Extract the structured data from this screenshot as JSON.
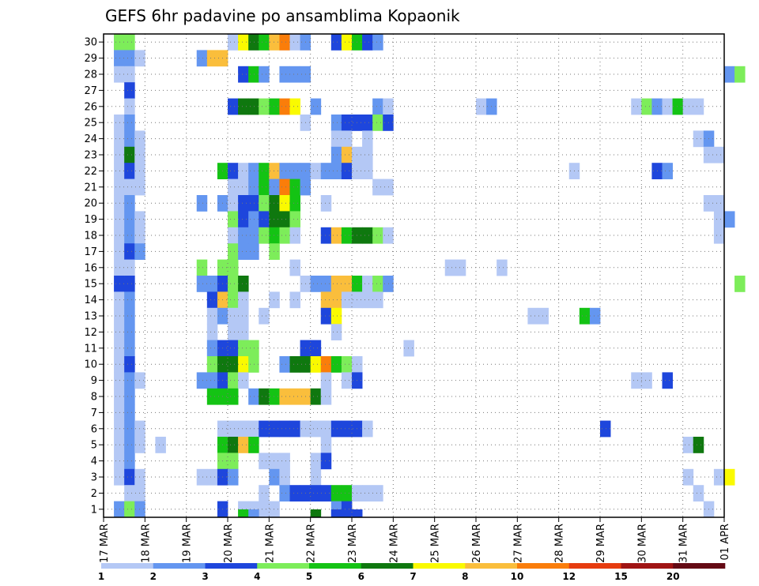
{
  "chart_data": {
    "type": "heatmap",
    "title": "GEFS 6hr padavine po ansamblima Kopaonik",
    "x_axis": {
      "tick_labels": [
        "17 MAR",
        "18 MAR",
        "19 MAR",
        "20 MAR",
        "21 MAR",
        "22 MAR",
        "23 MAR",
        "24 MAR",
        "25 MAR",
        "26 MAR",
        "27 MAR",
        "28 MAR",
        "29 MAR",
        "30 MAR",
        "31 MAR",
        "01 APR"
      ],
      "range_days": [
        0,
        15
      ],
      "step_hours": 6
    },
    "y_axis": {
      "tick_labels": [
        "1",
        "2",
        "3",
        "4",
        "5",
        "6",
        "7",
        "8",
        "9",
        "10",
        "11",
        "12",
        "13",
        "14",
        "15",
        "16",
        "17",
        "18",
        "19",
        "20",
        "21",
        "22",
        "23",
        "24",
        "25",
        "26",
        "27",
        "28",
        "29",
        "30"
      ],
      "range": [
        0.5,
        30.5
      ]
    },
    "grid": "dotted",
    "legend": {
      "placement": "bottom",
      "colors": [
        "#b4c8f5",
        "#6496f0",
        "#1e46dc",
        "#7ded5a",
        "#14c314",
        "#0f780f",
        "#fafa00",
        "#fabe3c",
        "#fa7d0a",
        "#e63c0f",
        "#a01414",
        "#640a14"
      ],
      "labels": [
        "1",
        "2",
        "3",
        "4",
        "5",
        "6",
        "7",
        "8",
        "10",
        "12",
        "15",
        "20"
      ]
    },
    "cells": [
      [
        1,
        30,
        1
      ],
      [
        1,
        30,
        2
      ],
      [
        1,
        30,
        4
      ],
      [
        1,
        29,
        1
      ],
      [
        1,
        29,
        2
      ],
      [
        1,
        28,
        1
      ],
      [
        1,
        25,
        1
      ],
      [
        1,
        24,
        1
      ],
      [
        1,
        23,
        1
      ],
      [
        1,
        22,
        1
      ],
      [
        1,
        21,
        1
      ],
      [
        1,
        20,
        1
      ],
      [
        1,
        19,
        1
      ],
      [
        1,
        18,
        1
      ],
      [
        1,
        17,
        1
      ],
      [
        1,
        16,
        1
      ],
      [
        1,
        15,
        3
      ],
      [
        1,
        14,
        1
      ],
      [
        1,
        13,
        1
      ],
      [
        1,
        12,
        1
      ],
      [
        1,
        11,
        1
      ],
      [
        1,
        10,
        1
      ],
      [
        1,
        9,
        1
      ],
      [
        1,
        8,
        1
      ],
      [
        1,
        7,
        1
      ],
      [
        1,
        6,
        1
      ],
      [
        1,
        5,
        1
      ],
      [
        1,
        4,
        1
      ],
      [
        1,
        3,
        1
      ],
      [
        1,
        1,
        2
      ],
      [
        2,
        30,
        4
      ],
      [
        2,
        29,
        2
      ],
      [
        2,
        28,
        1
      ],
      [
        2,
        27,
        3
      ],
      [
        2,
        26,
        1
      ],
      [
        2,
        25,
        2
      ],
      [
        2,
        24,
        2
      ],
      [
        2,
        23,
        6
      ],
      [
        2,
        22,
        3
      ],
      [
        2,
        21,
        1
      ],
      [
        2,
        20,
        2
      ],
      [
        2,
        19,
        2
      ],
      [
        2,
        18,
        2
      ],
      [
        2,
        17,
        3
      ],
      [
        2,
        16,
        1
      ],
      [
        2,
        15,
        3
      ],
      [
        2,
        14,
        2
      ],
      [
        2,
        13,
        2
      ],
      [
        2,
        12,
        2
      ],
      [
        2,
        11,
        2
      ],
      [
        2,
        10,
        3
      ],
      [
        2,
        9,
        2
      ],
      [
        2,
        8,
        2
      ],
      [
        2,
        7,
        2
      ],
      [
        2,
        6,
        2
      ],
      [
        2,
        5,
        2
      ],
      [
        2,
        4,
        2
      ],
      [
        2,
        3,
        3
      ],
      [
        2,
        2,
        1
      ],
      [
        2,
        1,
        4
      ],
      [
        3,
        29,
        1
      ],
      [
        3,
        24,
        1
      ],
      [
        3,
        23,
        1
      ],
      [
        3,
        22,
        1
      ],
      [
        3,
        21,
        1
      ],
      [
        3,
        19,
        1
      ],
      [
        3,
        18,
        1
      ],
      [
        3,
        17,
        2
      ],
      [
        3,
        9,
        1
      ],
      [
        3,
        6,
        1
      ],
      [
        3,
        5,
        1
      ],
      [
        3,
        3,
        1
      ],
      [
        3,
        2,
        1
      ],
      [
        3,
        1,
        2
      ],
      [
        5,
        5,
        1
      ],
      [
        9,
        29,
        2
      ],
      [
        9,
        20,
        2
      ],
      [
        9,
        16,
        4
      ],
      [
        9,
        15,
        2
      ],
      [
        9,
        9,
        2
      ],
      [
        9,
        3,
        1
      ],
      [
        10,
        29,
        8
      ],
      [
        10,
        15,
        2
      ],
      [
        10,
        14,
        3
      ],
      [
        10,
        13,
        1
      ],
      [
        10,
        12,
        1
      ],
      [
        10,
        11,
        2
      ],
      [
        10,
        10,
        4
      ],
      [
        10,
        9,
        2
      ],
      [
        10,
        8,
        5
      ],
      [
        10,
        3,
        1
      ],
      [
        11,
        29,
        8
      ],
      [
        11,
        22,
        5
      ],
      [
        11,
        20,
        2
      ],
      [
        11,
        16,
        4
      ],
      [
        11,
        15,
        3
      ],
      [
        11,
        14,
        8
      ],
      [
        11,
        13,
        2
      ],
      [
        11,
        11,
        3
      ],
      [
        11,
        10,
        6
      ],
      [
        11,
        9,
        3
      ],
      [
        11,
        8,
        5
      ],
      [
        11,
        6,
        1
      ],
      [
        11,
        5,
        5
      ],
      [
        11,
        4,
        4
      ],
      [
        11,
        3,
        3
      ],
      [
        11,
        1,
        3
      ],
      [
        12,
        30,
        1
      ],
      [
        12,
        26,
        3
      ],
      [
        12,
        22,
        3
      ],
      [
        12,
        21,
        1
      ],
      [
        12,
        20,
        1
      ],
      [
        12,
        19,
        4
      ],
      [
        12,
        18,
        1
      ],
      [
        12,
        17,
        4
      ],
      [
        12,
        16,
        4
      ],
      [
        12,
        15,
        4
      ],
      [
        12,
        14,
        4
      ],
      [
        12,
        13,
        1
      ],
      [
        12,
        12,
        1
      ],
      [
        12,
        11,
        3
      ],
      [
        12,
        10,
        6
      ],
      [
        12,
        9,
        4
      ],
      [
        12,
        8,
        5
      ],
      [
        12,
        6,
        1
      ],
      [
        12,
        5,
        6
      ],
      [
        12,
        4,
        4
      ],
      [
        12,
        3,
        2
      ],
      [
        13,
        30,
        7
      ],
      [
        13,
        28,
        3
      ],
      [
        13,
        26,
        6
      ],
      [
        13,
        22,
        1
      ],
      [
        13,
        21,
        1
      ],
      [
        13,
        20,
        3
      ],
      [
        13,
        19,
        3
      ],
      [
        13,
        18,
        2
      ],
      [
        13,
        17,
        2
      ],
      [
        13,
        15,
        6
      ],
      [
        13,
        14,
        1
      ],
      [
        13,
        13,
        1
      ],
      [
        13,
        12,
        1
      ],
      [
        13,
        11,
        4
      ],
      [
        13,
        10,
        7
      ],
      [
        13,
        9,
        1
      ],
      [
        13,
        6,
        1
      ],
      [
        13,
        5,
        8
      ],
      [
        13,
        1,
        1
      ],
      [
        14,
        30,
        6
      ],
      [
        14,
        28,
        5
      ],
      [
        14,
        26,
        6
      ],
      [
        14,
        22,
        2
      ],
      [
        14,
        21,
        2
      ],
      [
        14,
        20,
        3
      ],
      [
        14,
        19,
        2
      ],
      [
        14,
        18,
        2
      ],
      [
        14,
        17,
        2
      ],
      [
        14,
        11,
        4
      ],
      [
        14,
        10,
        4
      ],
      [
        14,
        8,
        2
      ],
      [
        14,
        6,
        1
      ],
      [
        14,
        5,
        5
      ],
      [
        14,
        1,
        1
      ],
      [
        15,
        30,
        5
      ],
      [
        15,
        28,
        2
      ],
      [
        15,
        26,
        4
      ],
      [
        15,
        22,
        5
      ],
      [
        15,
        21,
        5
      ],
      [
        15,
        20,
        4
      ],
      [
        15,
        19,
        3
      ],
      [
        15,
        18,
        4
      ],
      [
        15,
        13,
        1
      ],
      [
        15,
        8,
        6
      ],
      [
        15,
        6,
        3
      ],
      [
        15,
        4,
        1
      ],
      [
        15,
        2,
        1
      ],
      [
        15,
        1,
        1
      ],
      [
        16,
        30,
        8
      ],
      [
        16,
        26,
        5
      ],
      [
        16,
        22,
        8
      ],
      [
        16,
        21,
        2
      ],
      [
        16,
        20,
        6
      ],
      [
        16,
        19,
        6
      ],
      [
        16,
        18,
        5
      ],
      [
        16,
        17,
        4
      ],
      [
        16,
        14,
        1
      ],
      [
        16,
        8,
        5
      ],
      [
        16,
        6,
        3
      ],
      [
        16,
        4,
        1
      ],
      [
        16,
        3,
        2
      ],
      [
        16,
        1,
        1
      ],
      [
        17,
        30,
        9
      ],
      [
        17,
        28,
        2
      ],
      [
        17,
        26,
        9
      ],
      [
        17,
        22,
        2
      ],
      [
        17,
        21,
        9
      ],
      [
        17,
        20,
        7
      ],
      [
        17,
        19,
        6
      ],
      [
        17,
        18,
        4
      ],
      [
        17,
        10,
        2
      ],
      [
        17,
        8,
        8
      ],
      [
        17,
        6,
        3
      ],
      [
        17,
        4,
        1
      ],
      [
        17,
        3,
        1
      ],
      [
        17,
        2,
        2
      ],
      [
        18,
        30,
        1
      ],
      [
        18,
        28,
        2
      ],
      [
        18,
        26,
        7
      ],
      [
        18,
        22,
        2
      ],
      [
        18,
        21,
        5
      ],
      [
        18,
        20,
        5
      ],
      [
        18,
        19,
        4
      ],
      [
        18,
        18,
        1
      ],
      [
        18,
        16,
        1
      ],
      [
        18,
        14,
        1
      ],
      [
        18,
        10,
        6
      ],
      [
        18,
        8,
        8
      ],
      [
        18,
        6,
        3
      ],
      [
        18,
        2,
        3
      ],
      [
        19,
        30,
        2
      ],
      [
        19,
        28,
        2
      ],
      [
        19,
        25,
        1
      ],
      [
        19,
        22,
        2
      ],
      [
        19,
        21,
        2
      ],
      [
        19,
        15,
        1
      ],
      [
        19,
        11,
        3
      ],
      [
        19,
        10,
        6
      ],
      [
        19,
        8,
        8
      ],
      [
        19,
        6,
        1
      ],
      [
        19,
        2,
        3
      ],
      [
        20,
        26,
        2
      ],
      [
        20,
        22,
        1
      ],
      [
        20,
        15,
        2
      ],
      [
        20,
        11,
        3
      ],
      [
        20,
        10,
        7
      ],
      [
        20,
        8,
        6
      ],
      [
        20,
        6,
        1
      ],
      [
        20,
        4,
        1
      ],
      [
        20,
        3,
        1
      ],
      [
        20,
        2,
        3
      ],
      [
        21,
        22,
        2
      ],
      [
        21,
        20,
        1
      ],
      [
        21,
        18,
        3
      ],
      [
        21,
        15,
        2
      ],
      [
        21,
        14,
        8
      ],
      [
        21,
        13,
        3
      ],
      [
        21,
        10,
        9
      ],
      [
        21,
        9,
        1
      ],
      [
        21,
        8,
        1
      ],
      [
        21,
        6,
        1
      ],
      [
        21,
        5,
        1
      ],
      [
        21,
        4,
        3
      ],
      [
        21,
        2,
        3
      ],
      [
        22,
        30,
        3
      ],
      [
        22,
        25,
        2
      ],
      [
        22,
        24,
        1
      ],
      [
        22,
        23,
        2
      ],
      [
        22,
        22,
        2
      ],
      [
        22,
        18,
        8
      ],
      [
        22,
        15,
        8
      ],
      [
        22,
        14,
        8
      ],
      [
        22,
        13,
        7
      ],
      [
        22,
        12,
        1
      ],
      [
        22,
        10,
        5
      ],
      [
        22,
        6,
        3
      ],
      [
        22,
        2,
        5
      ],
      [
        22,
        1,
        2
      ],
      [
        23,
        30,
        7
      ],
      [
        23,
        25,
        3
      ],
      [
        23,
        24,
        1
      ],
      [
        23,
        23,
        8
      ],
      [
        23,
        22,
        3
      ],
      [
        23,
        18,
        5
      ],
      [
        23,
        15,
        8
      ],
      [
        23,
        14,
        1
      ],
      [
        23,
        10,
        4
      ],
      [
        23,
        9,
        1
      ],
      [
        23,
        6,
        3
      ],
      [
        23,
        2,
        5
      ],
      [
        23,
        1,
        3
      ],
      [
        24,
        30,
        5
      ],
      [
        24,
        25,
        3
      ],
      [
        24,
        23,
        1
      ],
      [
        24,
        22,
        1
      ],
      [
        24,
        18,
        6
      ],
      [
        24,
        15,
        5
      ],
      [
        24,
        14,
        1
      ],
      [
        24,
        10,
        1
      ],
      [
        24,
        9,
        3
      ],
      [
        24,
        6,
        3
      ],
      [
        24,
        2,
        1
      ],
      [
        25,
        30,
        3
      ],
      [
        25,
        25,
        3
      ],
      [
        25,
        24,
        1
      ],
      [
        25,
        23,
        1
      ],
      [
        25,
        22,
        1
      ],
      [
        25,
        18,
        6
      ],
      [
        25,
        15,
        1
      ],
      [
        25,
        14,
        1
      ],
      [
        25,
        6,
        1
      ],
      [
        25,
        2,
        1
      ],
      [
        26,
        30,
        2
      ],
      [
        26,
        26,
        2
      ],
      [
        26,
        25,
        4
      ],
      [
        26,
        21,
        1
      ],
      [
        26,
        18,
        4
      ],
      [
        26,
        15,
        4
      ],
      [
        26,
        14,
        1
      ],
      [
        26,
        2,
        1
      ],
      [
        27,
        26,
        1
      ],
      [
        27,
        25,
        3
      ],
      [
        27,
        21,
        1
      ],
      [
        27,
        18,
        1
      ],
      [
        27,
        15,
        2
      ],
      [
        29,
        11,
        1
      ],
      [
        33,
        16,
        1
      ],
      [
        34,
        16,
        1
      ],
      [
        36,
        26,
        1
      ],
      [
        37,
        26,
        2
      ],
      [
        38,
        16,
        1
      ],
      [
        41,
        13,
        1
      ],
      [
        42,
        13,
        1
      ],
      [
        45,
        22,
        1
      ],
      [
        46,
        13,
        5
      ],
      [
        47,
        13,
        2
      ],
      [
        48,
        6,
        3
      ],
      [
        51,
        26,
        1
      ],
      [
        51,
        9,
        1
      ],
      [
        52,
        26,
        4
      ],
      [
        52,
        9,
        1
      ],
      [
        53,
        26,
        2
      ],
      [
        53,
        22,
        3
      ],
      [
        54,
        26,
        1
      ],
      [
        54,
        22,
        2
      ],
      [
        54,
        9,
        3
      ],
      [
        55,
        26,
        5
      ],
      [
        56,
        26,
        1
      ],
      [
        56,
        5,
        1
      ],
      [
        56,
        3,
        1
      ],
      [
        57,
        26,
        1
      ],
      [
        57,
        24,
        1
      ],
      [
        57,
        5,
        6
      ],
      [
        57,
        2,
        1
      ],
      [
        58,
        24,
        2
      ],
      [
        58,
        23,
        1
      ],
      [
        58,
        20,
        1
      ],
      [
        58,
        1,
        1
      ],
      [
        59,
        23,
        1
      ],
      [
        59,
        20,
        1
      ],
      [
        59,
        19,
        1
      ],
      [
        59,
        18,
        1
      ],
      [
        59,
        3,
        1
      ],
      [
        60,
        28,
        2
      ],
      [
        60,
        19,
        2
      ],
      [
        60,
        3,
        7
      ],
      [
        61,
        28,
        4
      ],
      [
        61,
        15,
        4
      ]
    ],
    "top_strip": [
      [
        13,
        5
      ],
      [
        14,
        2
      ],
      [
        20,
        6
      ],
      [
        22,
        3
      ],
      [
        24,
        3
      ]
    ],
    "xlabel": "",
    "ylabel": ""
  }
}
